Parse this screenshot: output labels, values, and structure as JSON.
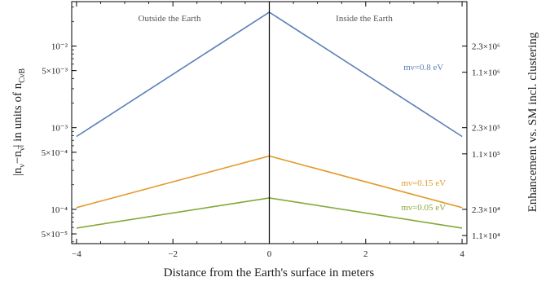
{
  "chart_data": {
    "type": "line",
    "x": [
      -4,
      0,
      4
    ],
    "xlim": [
      -4.1,
      4.1
    ],
    "xticks": [
      -4,
      -2,
      0,
      2,
      4
    ],
    "xtick_labels": [
      "−4",
      "−2",
      "0",
      "2",
      "4"
    ],
    "xlabel": "Distance from the Earth's surface in meters",
    "ylabel_parts": {
      "main": "|n",
      "sub1": "ν",
      "dash": "−n",
      "sub2": "ν̅",
      "rest": "| in units of n",
      "sub3": "CνB"
    },
    "ylabel2": "Enhancement vs. SM incl. clustering",
    "yscale": "log",
    "ylim": [
      3.8e-05,
      0.035
    ],
    "yticks_left": [
      {
        "v": 5e-05,
        "label": "5×10⁻⁵"
      },
      {
        "v": 0.0001,
        "label": "10⁻⁴"
      },
      {
        "v": 0.0005,
        "label": "5×10⁻⁴"
      },
      {
        "v": 0.001,
        "label": "10⁻³"
      },
      {
        "v": 0.005,
        "label": "5×10⁻³"
      },
      {
        "v": 0.01,
        "label": "10⁻²"
      }
    ],
    "yticks_right": [
      {
        "v": 4.78e-05,
        "label": "1.1×10⁴"
      },
      {
        "v": 0.0001,
        "label": "2.3×10⁴"
      },
      {
        "v": 0.000478,
        "label": "1.1×10⁵"
      },
      {
        "v": 0.001,
        "label": "2.3×10⁵"
      },
      {
        "v": 0.00478,
        "label": "1.1×10⁶"
      },
      {
        "v": 0.01,
        "label": "2.3×10⁶"
      }
    ],
    "vline_x": 0,
    "region_labels": [
      "Outside the Earth",
      "Inside the Earth"
    ],
    "series": [
      {
        "name": "mν=0.8 eV",
        "values": [
          0.00078,
          0.026,
          0.00078
        ],
        "color": "#5b7fb5",
        "label_x": 3.2,
        "label_y": 0.0051
      },
      {
        "name": "mν=0.15 eV",
        "values": [
          0.000105,
          0.00045,
          0.000105
        ],
        "color": "#e39a2b",
        "label_x": 3.2,
        "label_y": 0.000195
      },
      {
        "name": "mν=0.05 eV",
        "values": [
          5.9e-05,
          0.000138,
          5.9e-05
        ],
        "color": "#85a838",
        "label_x": 3.2,
        "label_y": 9.8e-05
      }
    ]
  }
}
